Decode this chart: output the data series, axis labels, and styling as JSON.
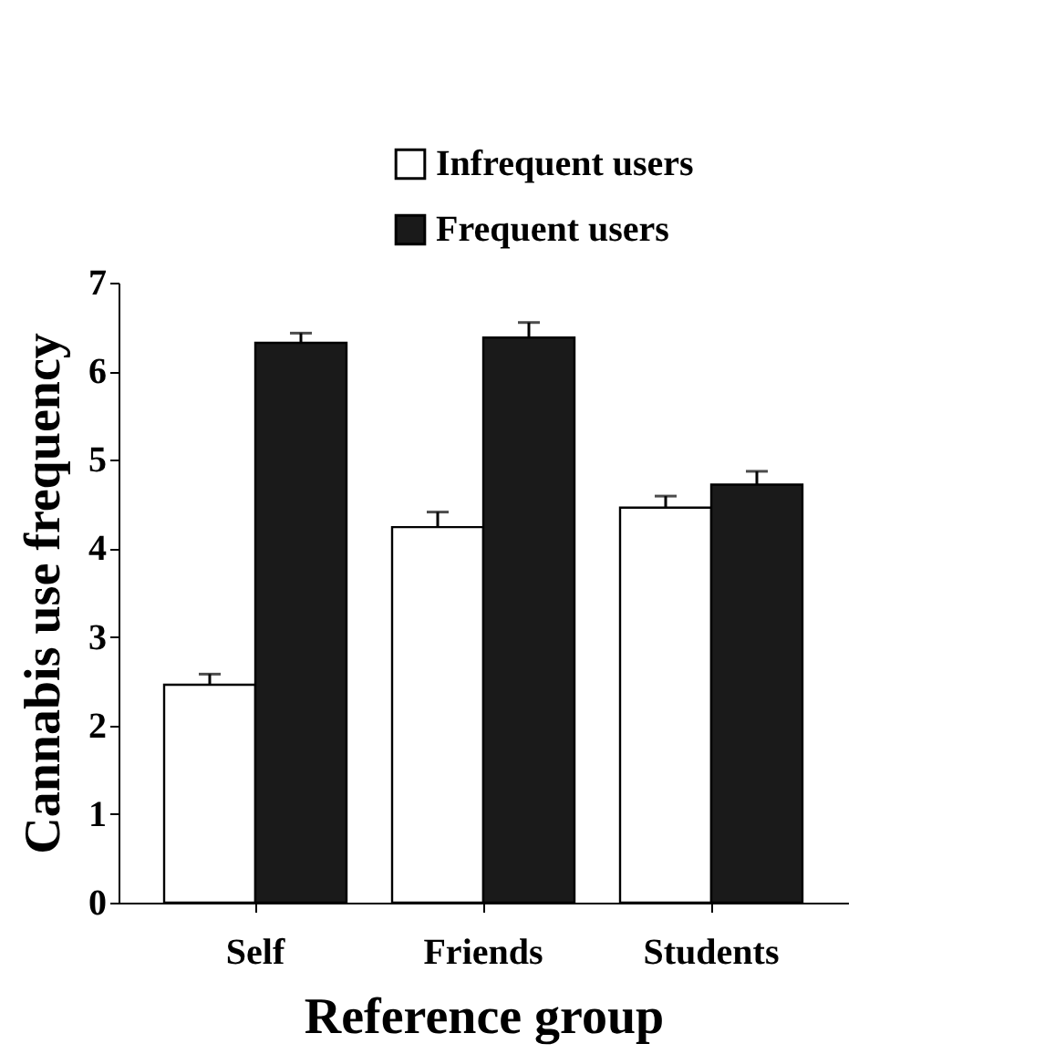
{
  "chart_data": {
    "type": "bar",
    "xlabel": "Reference group",
    "ylabel": "Cannabis use frequency",
    "categories": [
      "Self",
      "Friends",
      "Students"
    ],
    "series": [
      {
        "name": "Infrequent users",
        "color": "#ffffff",
        "values": [
          2.46,
          4.24,
          4.46
        ],
        "errors": [
          [
            2.46,
            2.58
          ],
          [
            4.24,
            4.41
          ],
          [
            4.46,
            4.59
          ]
        ]
      },
      {
        "name": "Frequent users",
        "color": "#1a1a1a",
        "values": [
          6.32,
          6.38,
          4.72
        ],
        "errors": [
          [
            6.32,
            6.43
          ],
          [
            6.38,
            6.55
          ],
          [
            4.72,
            4.87
          ]
        ]
      }
    ],
    "ylim": [
      0,
      7
    ],
    "yticks": [
      0,
      1,
      2,
      3,
      4,
      5,
      6,
      7
    ],
    "grid": false,
    "legend": "top right"
  }
}
